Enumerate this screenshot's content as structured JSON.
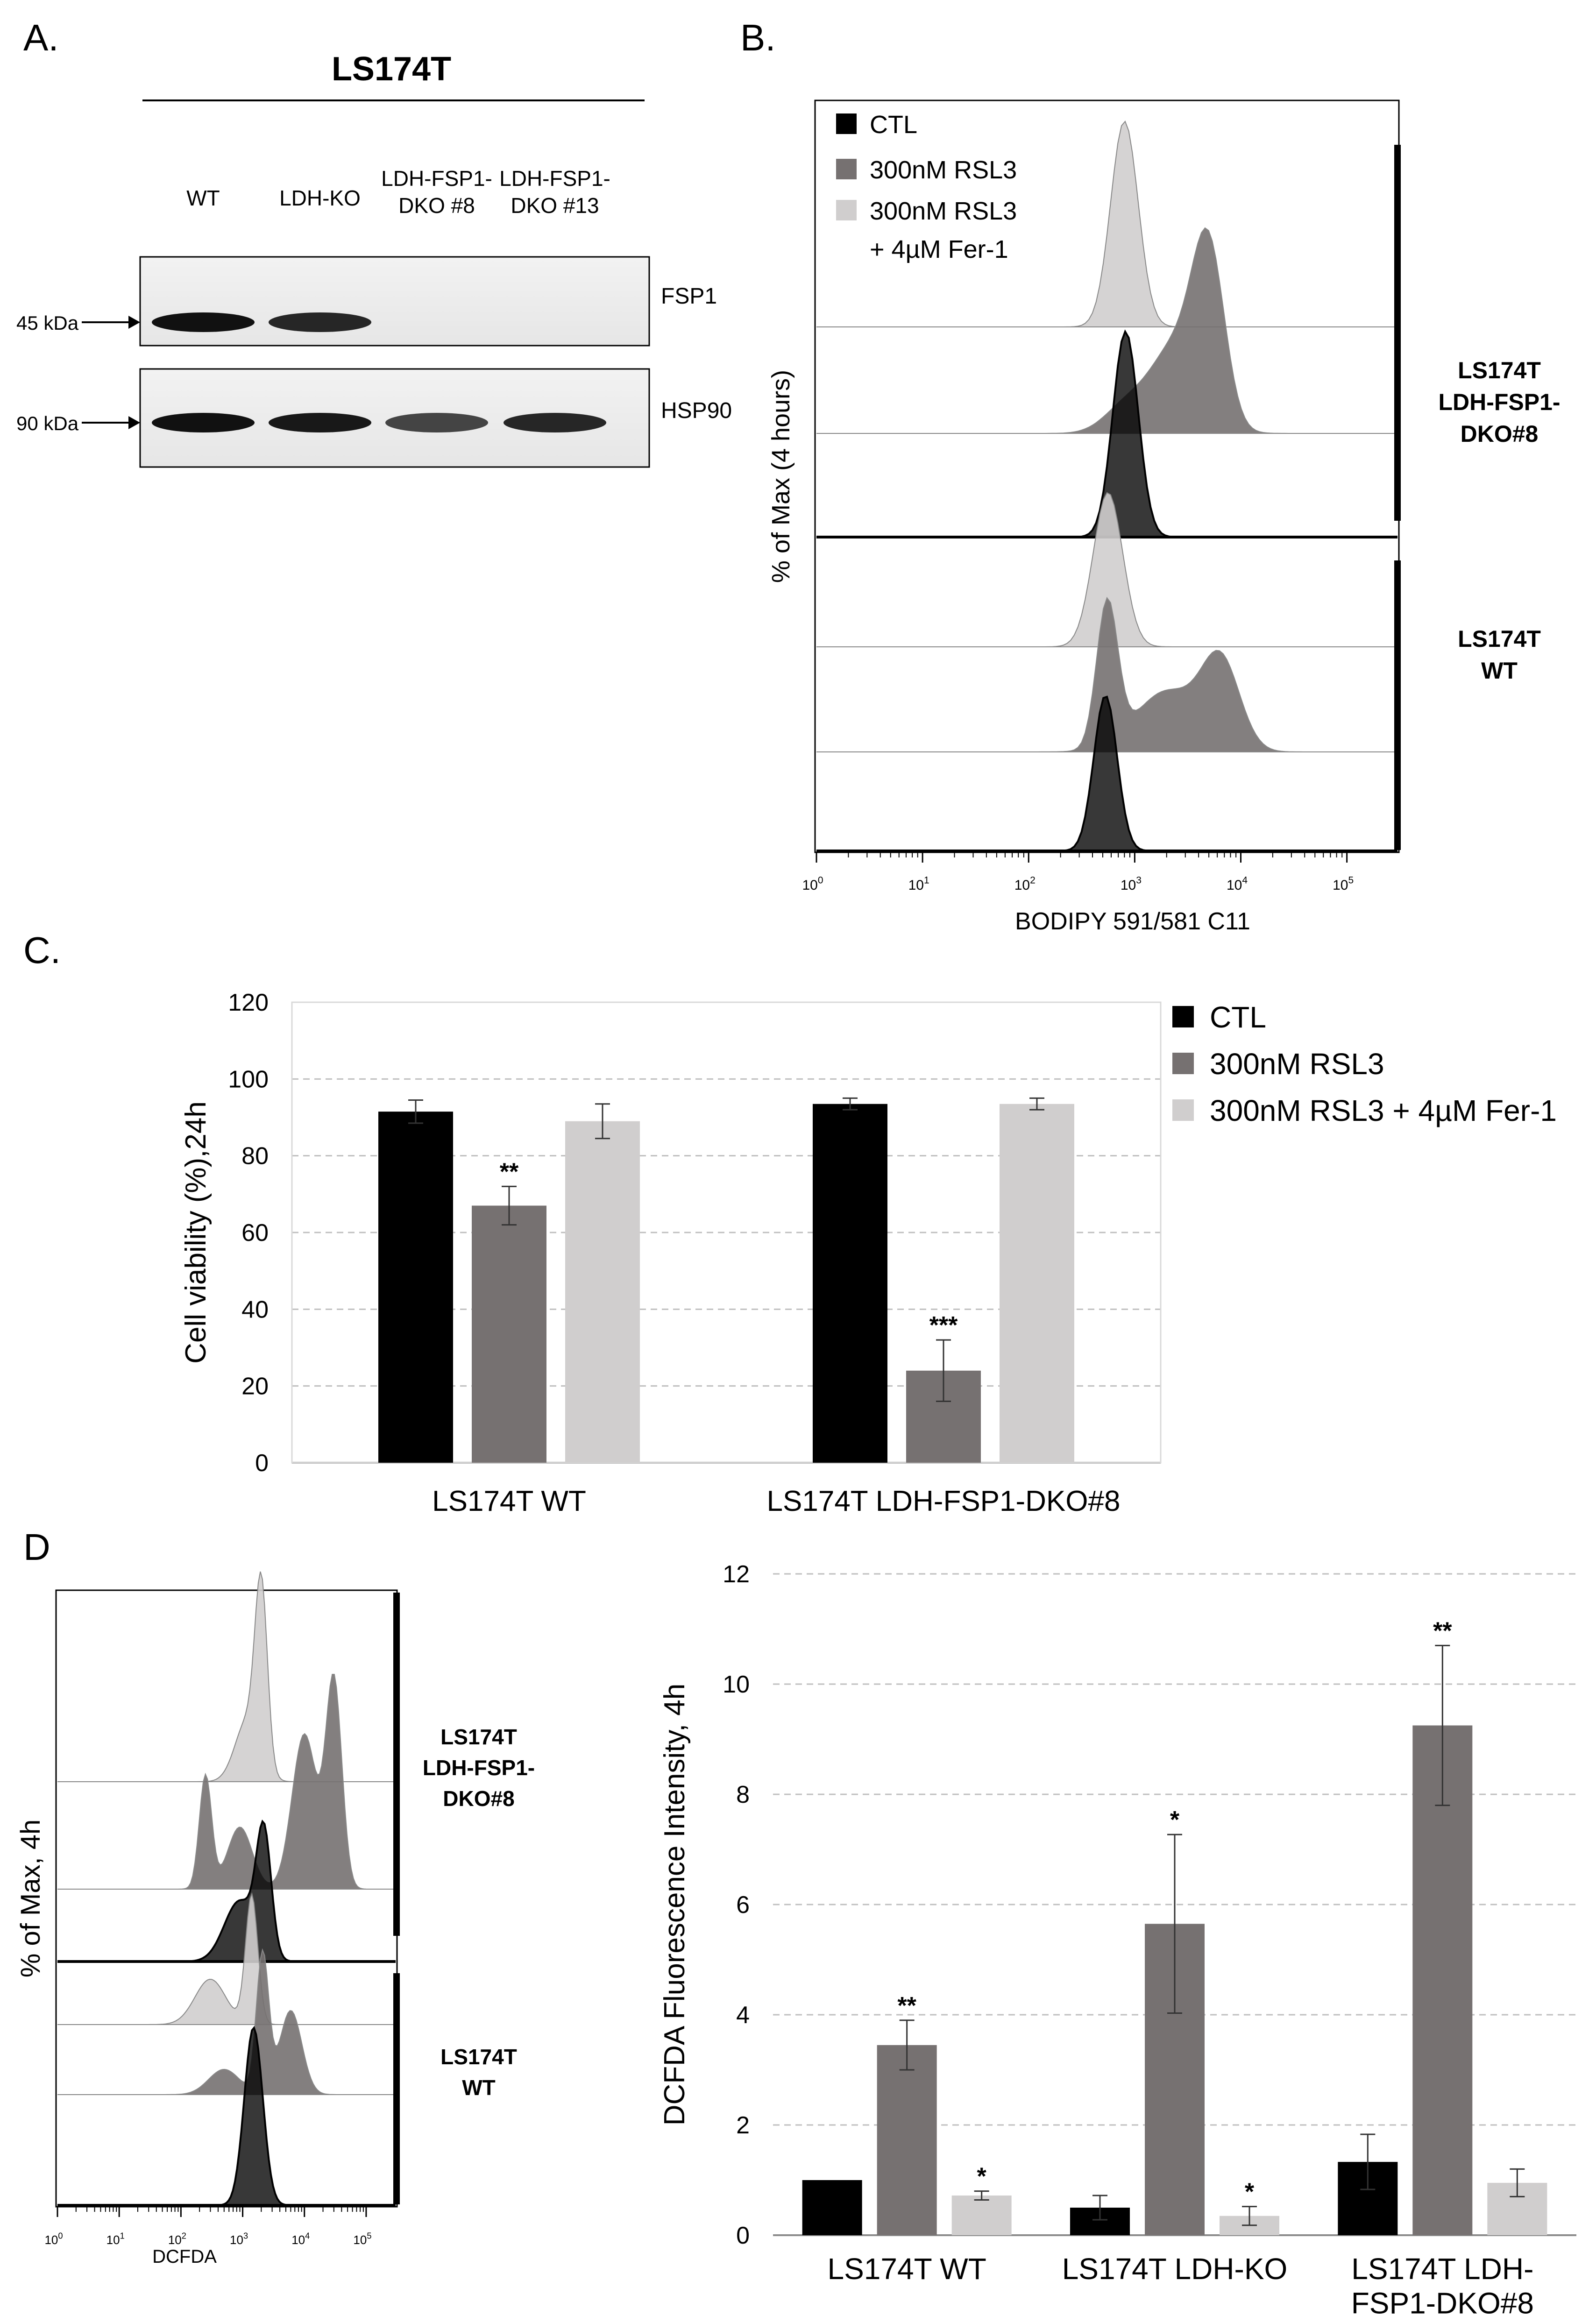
{
  "panels": {
    "A": {
      "label": "A.",
      "title": "LS174T",
      "lanes": [
        "WT",
        "LDH-KO",
        "LDH-FSP1-\nDKO #8",
        "LDH-FSP1-\nDKO #13"
      ],
      "blots": [
        {
          "name": "FSP1",
          "marker": "45 kDa",
          "intensities": [
            1.0,
            0.85,
            0.0,
            0.0
          ]
        },
        {
          "name": "HSP90",
          "marker": "90 kDa",
          "intensities": [
            1.0,
            0.95,
            0.65,
            0.85
          ]
        }
      ]
    },
    "B": {
      "label": "B.",
      "ylabel": "% of Max (4 hours)",
      "xlabel": "BODIPY 591/581 C11",
      "legend": [
        "CTL",
        "300nM RSL3",
        "300nM RSL3\n+ 4µM Fer-1"
      ],
      "groups": [
        "LS174T\nLDH-FSP1-\nDKO#8",
        "LS174T\nWT"
      ]
    },
    "C": {
      "label": "C."
    },
    "D": {
      "label": "D",
      "ylabel": "% of Max, 4h",
      "xlabel": "DCFDA",
      "groups": [
        "LS174T\nLDH-FSP1-\nDKO#8",
        "LS174T\nWT"
      ]
    }
  },
  "colors": {
    "ctl": "#000000",
    "rsl3": "#767171",
    "fer1": "#d0cece"
  },
  "chart_data": [
    {
      "id": "B",
      "type": "histogram",
      "xscale": "log",
      "xlim": [
        1,
        300000
      ],
      "xticks": [
        {
          "v": 1,
          "b": "10",
          "e": "0"
        },
        {
          "v": 10,
          "b": "10",
          "e": "1"
        },
        {
          "v": 100,
          "b": "10",
          "e": "2"
        },
        {
          "v": 1000,
          "b": "10",
          "e": "3"
        },
        {
          "v": 10000,
          "b": "10",
          "e": "4"
        },
        {
          "v": 100000,
          "b": "10",
          "e": "5"
        }
      ],
      "tracks": [
        {
          "group": "LS174T LDH-FSP1-DKO#8",
          "series": "300nM RSL3 + 4µM Fer-1",
          "peaks": [
            {
              "c": 800,
              "h": 1.0,
              "w": 0.13
            }
          ]
        },
        {
          "group": "LS174T LDH-FSP1-DKO#8",
          "series": "300nM RSL3",
          "peaks": [
            {
              "c": 5000,
              "h": 1.0,
              "w": 0.15
            },
            {
              "c": 2500,
              "h": 0.55,
              "w": 0.25
            },
            {
              "c": 800,
              "h": 0.15,
              "w": 0.2
            }
          ]
        },
        {
          "group": "LS174T LDH-FSP1-DKO#8",
          "series": "CTL",
          "peaks": [
            {
              "c": 820,
              "h": 1.0,
              "w": 0.12
            }
          ]
        },
        {
          "group": "LS174T WT",
          "series": "300nM RSL3 + 4µM Fer-1",
          "peaks": [
            {
              "c": 560,
              "h": 1.0,
              "w": 0.14
            }
          ]
        },
        {
          "group": "LS174T WT",
          "series": "300nM RSL3",
          "peaks": [
            {
              "c": 550,
              "h": 1.0,
              "w": 0.1
            },
            {
              "c": 6500,
              "h": 0.6,
              "w": 0.18
            },
            {
              "c": 2000,
              "h": 0.42,
              "w": 0.3
            }
          ]
        },
        {
          "group": "LS174T WT",
          "series": "CTL",
          "peaks": [
            {
              "c": 530,
              "h": 1.0,
              "w": 0.11
            }
          ]
        }
      ]
    },
    {
      "id": "C",
      "type": "bar",
      "ylabel": "Cell viability (%),24h",
      "ylim": [
        0,
        120
      ],
      "yticks": [
        0,
        20,
        40,
        60,
        80,
        100,
        120
      ],
      "grid": true,
      "legend_position": "right",
      "categories": [
        "LS174T WT",
        "LS174T LDH-FSP1-DKO#8"
      ],
      "series": [
        {
          "name": "CTL",
          "values": [
            91.5,
            93.5
          ],
          "errors": [
            3,
            1.5
          ],
          "sig": [
            "",
            ""
          ]
        },
        {
          "name": "300nM RSL3",
          "values": [
            67,
            24
          ],
          "errors": [
            5,
            8
          ],
          "sig": [
            "**",
            "***"
          ]
        },
        {
          "name": "300nM RSL3 + 4µM Fer-1",
          "values": [
            89,
            93.5
          ],
          "errors": [
            4.5,
            1.5
          ],
          "sig": [
            "",
            ""
          ]
        }
      ]
    },
    {
      "id": "D-hist",
      "type": "histogram",
      "xscale": "log",
      "xlim": [
        1,
        300000
      ],
      "xticks": [
        {
          "v": 1,
          "b": "10",
          "e": "0"
        },
        {
          "v": 10,
          "b": "10",
          "e": "1"
        },
        {
          "v": 100,
          "b": "10",
          "e": "2"
        },
        {
          "v": 1000,
          "b": "10",
          "e": "3"
        },
        {
          "v": 10000,
          "b": "10",
          "e": "4"
        },
        {
          "v": 100000,
          "b": "10",
          "e": "5"
        }
      ],
      "tracks": [
        {
          "group": "LS174T LDH-FSP1-DKO#8",
          "series": "300nM RSL3 + 4µM Fer-1",
          "peaks": [
            {
              "c": 2000,
              "h": 1.0,
              "w": 0.1
            },
            {
              "c": 1200,
              "h": 0.35,
              "w": 0.2
            }
          ]
        },
        {
          "group": "LS174T LDH-FSP1-DKO#8",
          "series": "300nM RSL3",
          "peaks": [
            {
              "c": 30000,
              "h": 1.0,
              "w": 0.13
            },
            {
              "c": 10000,
              "h": 0.75,
              "w": 0.2
            },
            {
              "c": 250,
              "h": 0.55,
              "w": 0.1
            },
            {
              "c": 900,
              "h": 0.3,
              "w": 0.2
            }
          ]
        },
        {
          "group": "LS174T LDH-FSP1-DKO#8",
          "series": "CTL",
          "peaks": [
            {
              "c": 2200,
              "h": 1.0,
              "w": 0.12
            },
            {
              "c": 900,
              "h": 0.5,
              "w": 0.25
            }
          ]
        },
        {
          "group": "LS174T WT",
          "series": "300nM RSL3 + 4µM Fer-1",
          "peaks": [
            {
              "c": 1400,
              "h": 1.0,
              "w": 0.1
            },
            {
              "c": 300,
              "h": 0.35,
              "w": 0.25
            }
          ]
        },
        {
          "group": "LS174T WT",
          "series": "300nM RSL3",
          "peaks": [
            {
              "c": 2100,
              "h": 1.0,
              "w": 0.1
            },
            {
              "c": 6000,
              "h": 0.6,
              "w": 0.18
            },
            {
              "c": 500,
              "h": 0.18,
              "w": 0.25
            }
          ]
        },
        {
          "group": "LS174T WT",
          "series": "CTL",
          "peaks": [
            {
              "c": 1500,
              "h": 1.0,
              "w": 0.15
            }
          ]
        }
      ]
    },
    {
      "id": "D-bar",
      "type": "bar",
      "ylabel": "DCFDA Fluorescence Intensity, 4h",
      "ylim": [
        0,
        12
      ],
      "yticks": [
        0,
        2,
        4,
        6,
        8,
        10,
        12
      ],
      "grid": true,
      "categories": [
        "LS174T WT",
        "LS174T LDH-KO",
        "LS174T LDH-\nFSP1-DKO#8"
      ],
      "series": [
        {
          "name": "CTL",
          "values": [
            1.0,
            0.5,
            1.33
          ],
          "errors": [
            0,
            0.22,
            0.5
          ],
          "sig": [
            "",
            "",
            ""
          ]
        },
        {
          "name": "300nM RSL3",
          "values": [
            3.45,
            5.65,
            9.25
          ],
          "errors": [
            0.45,
            1.62,
            1.45
          ],
          "sig": [
            "**",
            "*",
            "**"
          ]
        },
        {
          "name": "300nM RSL3 + 4µM Fer-1",
          "values": [
            0.72,
            0.35,
            0.95
          ],
          "errors": [
            0.08,
            0.17,
            0.25
          ],
          "sig": [
            "*",
            "*",
            ""
          ]
        }
      ]
    }
  ]
}
